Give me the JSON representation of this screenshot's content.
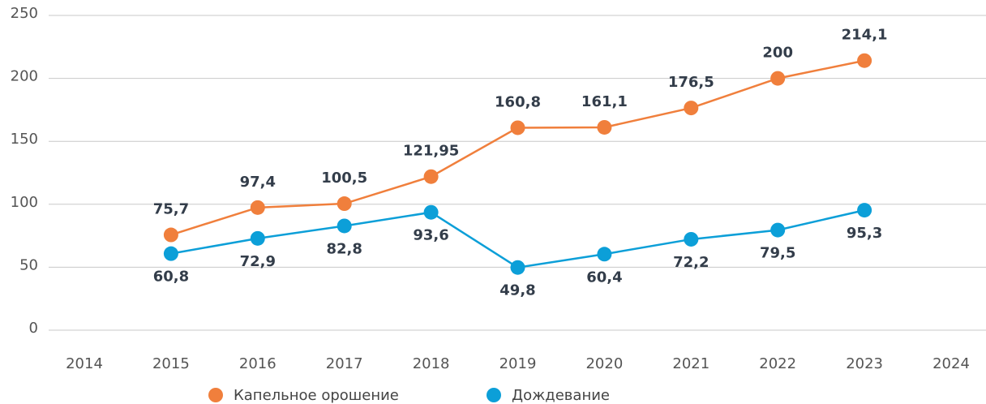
{
  "chart_data": {
    "type": "line",
    "categories": [
      "2014",
      "2015",
      "2016",
      "2017",
      "2018",
      "2019",
      "2020",
      "2021",
      "2022",
      "2023",
      "2024"
    ],
    "series": [
      {
        "name": "Капельное орошение",
        "color": "#f07f3c",
        "values": [
          null,
          75.7,
          97.4,
          100.5,
          121.95,
          160.8,
          161.1,
          176.5,
          200,
          214.1,
          null
        ],
        "value_labels": [
          null,
          "75,7",
          "97,4",
          "100,5",
          "121,95",
          "160,8",
          "161,1",
          "176,5",
          "200",
          "214,1",
          null
        ]
      },
      {
        "name": "Дождевание",
        "color": "#0c9fd8",
        "values": [
          null,
          60.8,
          72.9,
          82.8,
          93.6,
          49.8,
          60.4,
          72.2,
          79.5,
          95.3,
          null
        ],
        "value_labels": [
          null,
          "60,8",
          "72,9",
          "82,8",
          "93,6",
          "49,8",
          "60,4",
          "72,2",
          "79,5",
          "95,3",
          null
        ]
      }
    ],
    "ylim": [
      0,
      250
    ],
    "yticks": [
      0,
      50,
      100,
      150,
      200,
      250
    ],
    "grid": true,
    "legend": "bottom"
  }
}
